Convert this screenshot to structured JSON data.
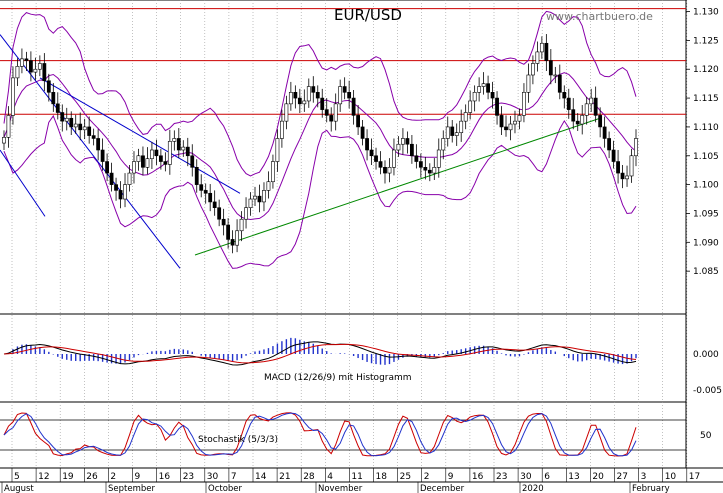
{
  "chart_data": {
    "type": "candlestick",
    "title": "EUR/USD",
    "watermark": "www.chartbuero.de",
    "price_axis": {
      "min": 1.08,
      "max": 1.132,
      "ticks": [
        "1.085",
        "1.090",
        "1.095",
        "1.100",
        "1.105",
        "1.110",
        "1.115",
        "1.120",
        "1.125",
        "1.130"
      ]
    },
    "horizontal_lines": [
      1.1305,
      1.1215,
      1.1122
    ],
    "trend_lines": [
      {
        "name": "upper-channel",
        "color": "#0000cc",
        "from": [
          0,
          1.126
        ],
        "to": [
          180,
          1.0855
        ]
      },
      {
        "name": "lower-channel",
        "color": "#0000cc",
        "from": [
          0,
          1.106
        ],
        "to": [
          45,
          1.0945
        ]
      },
      {
        "name": "channel-top",
        "color": "#0000cc",
        "from": [
          40,
          1.1185
        ],
        "to": [
          240,
          1.0985
        ]
      },
      {
        "name": "support",
        "color": "#008800",
        "from": [
          195,
          1.0878
        ],
        "to": [
          600,
          1.1115
        ]
      }
    ],
    "macd_label": "MACD (12/26/9) mit Histogramm",
    "macd_axis": {
      "ticks": [
        "0.000",
        "-0.005"
      ]
    },
    "stoch_label": "Stochastik (5/3/3)",
    "stoch_axis": {
      "ticks": [
        "50"
      ]
    },
    "x_ticks": [
      "5",
      "12",
      "19",
      "26",
      "2",
      "9",
      "16",
      "23",
      "30",
      "7",
      "14",
      "21",
      "28",
      "4",
      "11",
      "18",
      "25",
      "2",
      "9",
      "16",
      "23",
      "30",
      "6",
      "13",
      "20",
      "27",
      "3",
      "10",
      "17"
    ],
    "months": [
      "August",
      "September",
      "October",
      "November",
      "December",
      "2020",
      "February"
    ],
    "closes": [
      1.1082,
      1.112,
      1.1185,
      1.1205,
      1.1218,
      1.1215,
      1.1195,
      1.12,
      1.121,
      1.118,
      1.116,
      1.114,
      1.1125,
      1.111,
      1.1115,
      1.11,
      1.1105,
      1.1095,
      1.11,
      1.1085,
      1.108,
      1.106,
      1.104,
      1.102,
      1.1,
      1.099,
      1.0975,
      1.1,
      1.102,
      1.104,
      1.105,
      1.103,
      1.1045,
      1.106,
      1.105,
      1.104,
      1.1035,
      1.1075,
      1.108,
      1.106,
      1.1065,
      1.105,
      1.103,
      1.1,
      1.099,
      1.0985,
      1.097,
      1.096,
      1.094,
      1.093,
      1.0905,
      1.0895,
      1.092,
      1.094,
      1.096,
      1.0975,
      1.098,
      1.097,
      1.099,
      1.1005,
      1.104,
      1.108,
      1.111,
      1.114,
      1.116,
      1.115,
      1.114,
      1.1145,
      1.117,
      1.116,
      1.115,
      1.113,
      1.112,
      1.111,
      1.114,
      1.117,
      1.116,
      1.115,
      1.112,
      1.11,
      1.108,
      1.106,
      1.105,
      1.104,
      1.103,
      1.102,
      1.103,
      1.106,
      1.107,
      1.108,
      1.107,
      1.105,
      1.104,
      1.103,
      1.1025,
      1.102,
      1.103,
      1.106,
      1.108,
      1.11,
      1.1085,
      1.109,
      1.111,
      1.1125,
      1.1145,
      1.116,
      1.117,
      1.1175,
      1.116,
      1.115,
      1.112,
      1.11,
      1.1095,
      1.1105,
      1.111,
      1.112,
      1.116,
      1.119,
      1.121,
      1.123,
      1.1245,
      1.1215,
      1.119,
      1.119,
      1.116,
      1.115,
      1.113,
      1.111,
      1.1105,
      1.112,
      1.114,
      1.115,
      1.112,
      1.11,
      1.108,
      1.106,
      1.104,
      1.102,
      1.101,
      1.1015,
      1.105,
      1.108
    ]
  }
}
